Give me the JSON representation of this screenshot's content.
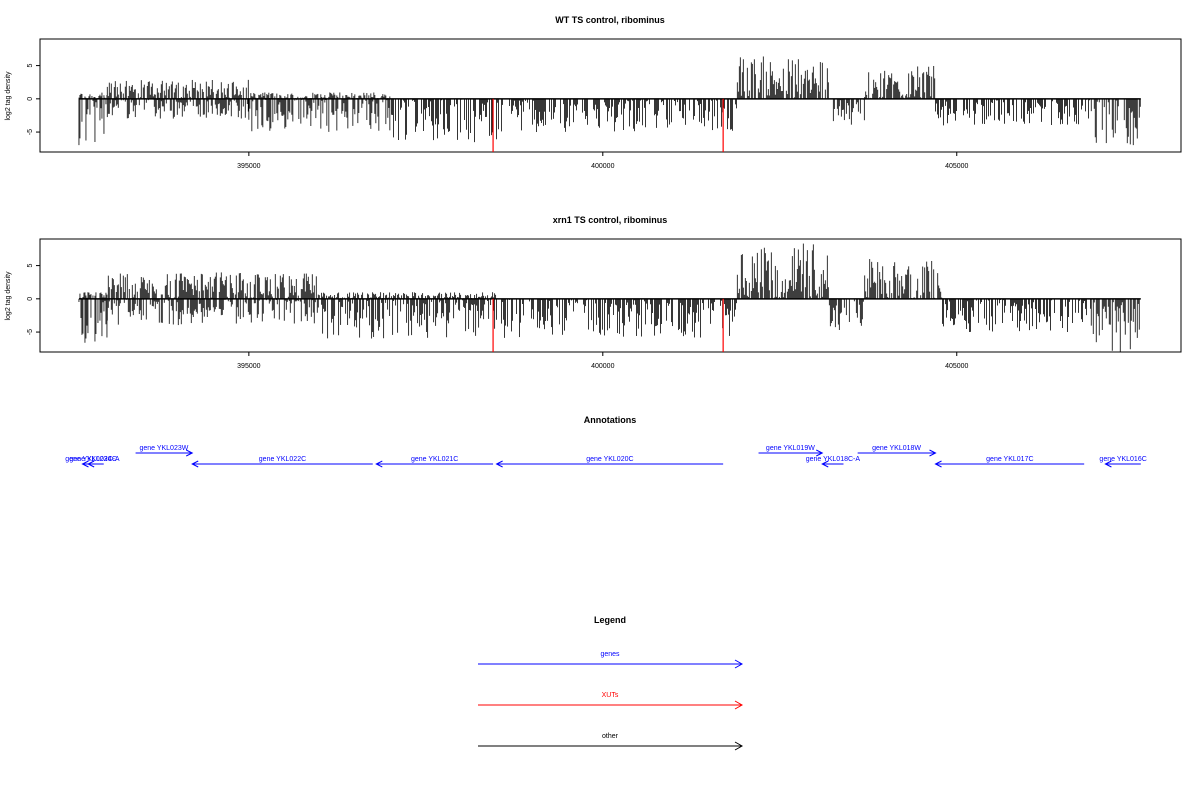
{
  "chart_data": [
    {
      "type": "bar",
      "title": "WT TS control, ribominus",
      "xlabel": "",
      "ylabel": "log2 tag density",
      "xlim": [
        392500,
        408600
      ],
      "ylim": [
        -8,
        9
      ],
      "yticks": [
        -5,
        0,
        5
      ],
      "yticklabels": [
        "-5",
        "0",
        "5"
      ],
      "xticks": [
        395000,
        400000,
        405000
      ],
      "xticklabels": [
        "395000",
        "400000",
        "405000"
      ],
      "grid": false,
      "profile": {
        "x_start": 392600,
        "x_end": 407600,
        "regions": [
          {
            "x_start": 392600,
            "x_end": 393000,
            "pos_max": 1,
            "neg_max": -7
          },
          {
            "x_start": 393000,
            "x_end": 395000,
            "pos_max": 3,
            "neg_max": -3
          },
          {
            "x_start": 395000,
            "x_end": 397000,
            "pos_max": 1,
            "neg_max": -5
          },
          {
            "x_start": 397000,
            "x_end": 398500,
            "pos_max": 0,
            "neg_max": -7
          },
          {
            "x_start": 398500,
            "x_end": 401900,
            "pos_max": 0,
            "neg_max": -5
          },
          {
            "x_start": 401900,
            "x_end": 403200,
            "pos_max": 6.5,
            "neg_max": 0
          },
          {
            "x_start": 403200,
            "x_end": 403700,
            "pos_max": 0,
            "neg_max": -4
          },
          {
            "x_start": 403700,
            "x_end": 404700,
            "pos_max": 5,
            "neg_max": 0
          },
          {
            "x_start": 404700,
            "x_end": 406900,
            "pos_max": 0,
            "neg_max": -4
          },
          {
            "x_start": 406900,
            "x_end": 407600,
            "pos_max": 0,
            "neg_max": -7
          }
        ]
      },
      "red_marks": [
        {
          "x": 398450,
          "value": -8
        },
        {
          "x": 401700,
          "value": -8
        }
      ]
    },
    {
      "type": "bar",
      "title": "xrn1 TS control, ribominus",
      "xlabel": "",
      "ylabel": "log2 tag density",
      "xlim": [
        392500,
        408600
      ],
      "ylim": [
        -8,
        9
      ],
      "yticks": [
        -5,
        0,
        5
      ],
      "yticklabels": [
        "-5",
        "0",
        "5"
      ],
      "xticks": [
        395000,
        400000,
        405000
      ],
      "xticklabels": [
        "395000",
        "400000",
        "405000"
      ],
      "grid": false,
      "profile": {
        "x_start": 392600,
        "x_end": 407600,
        "regions": [
          {
            "x_start": 392600,
            "x_end": 393000,
            "pos_max": 1,
            "neg_max": -7
          },
          {
            "x_start": 393000,
            "x_end": 396000,
            "pos_max": 4,
            "neg_max": -4
          },
          {
            "x_start": 396000,
            "x_end": 398500,
            "pos_max": 1,
            "neg_max": -6
          },
          {
            "x_start": 398500,
            "x_end": 401900,
            "pos_max": 0,
            "neg_max": -6
          },
          {
            "x_start": 401900,
            "x_end": 403200,
            "pos_max": 8.5,
            "neg_max": 0
          },
          {
            "x_start": 403200,
            "x_end": 403700,
            "pos_max": 0,
            "neg_max": -5
          },
          {
            "x_start": 403700,
            "x_end": 404800,
            "pos_max": 6,
            "neg_max": 0
          },
          {
            "x_start": 404800,
            "x_end": 406900,
            "pos_max": 0,
            "neg_max": -5
          },
          {
            "x_start": 406900,
            "x_end": 407600,
            "pos_max": 0,
            "neg_max": -8
          }
        ]
      },
      "red_marks": [
        {
          "x": 398450,
          "value": -8
        },
        {
          "x": 401700,
          "value": -8
        }
      ]
    }
  ],
  "annotations": {
    "title": "Annotations",
    "genes": [
      {
        "label": "gene YKL024C",
        "x_start": 392650,
        "x_end": 392950,
        "strand": "-",
        "row": 0
      },
      {
        "label": "gene YKL023C-A",
        "x_start": 392730,
        "x_end": 392850,
        "strand": "-",
        "row": 0
      },
      {
        "label": "gene YKL023W",
        "x_start": 393400,
        "x_end": 394200,
        "strand": "+",
        "row": 1
      },
      {
        "label": "gene YKL022C",
        "x_start": 394200,
        "x_end": 396750,
        "strand": "-",
        "row": 0
      },
      {
        "label": "gene YKL021C",
        "x_start": 396800,
        "x_end": 398450,
        "strand": "-",
        "row": 0
      },
      {
        "label": "gene YKL020C",
        "x_start": 398500,
        "x_end": 401700,
        "strand": "-",
        "row": 0
      },
      {
        "label": "gene YKL019W",
        "x_start": 402200,
        "x_end": 403100,
        "strand": "+",
        "row": 1
      },
      {
        "label": "gene YKL018C-A",
        "x_start": 403100,
        "x_end": 403400,
        "strand": "-",
        "row": 0
      },
      {
        "label": "gene YKL018W",
        "x_start": 403600,
        "x_end": 404700,
        "strand": "+",
        "row": 1
      },
      {
        "label": "gene YKL017C",
        "x_start": 404700,
        "x_end": 406800,
        "strand": "-",
        "row": 0
      },
      {
        "label": "gene YKL016C",
        "x_start": 407100,
        "x_end": 407600,
        "strand": "-",
        "row": 0
      }
    ]
  },
  "legend": {
    "title": "Legend",
    "items": [
      {
        "label": "genes",
        "color": "#0000ff"
      },
      {
        "label": "XUTs",
        "color": "#ff0000"
      },
      {
        "label": "other",
        "color": "#000000"
      }
    ]
  },
  "colors": {
    "data": "#000000",
    "xut": "#ff0000",
    "gene": "#0000ff"
  }
}
